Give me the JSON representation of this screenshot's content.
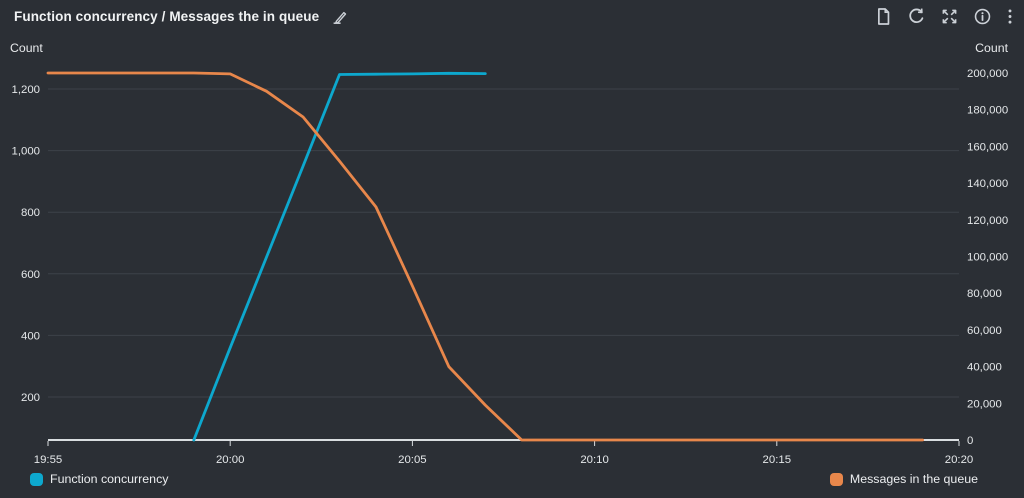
{
  "chart_data": {
    "type": "line",
    "title": "Function concurrency / Messages the in queue",
    "grid": "horizontal",
    "legend_position": "bottom",
    "x_axis": {
      "ticks": [
        "19:55",
        "20:00",
        "20:05",
        "20:10",
        "20:15",
        "20:20"
      ]
    },
    "left_axis": {
      "label": "Count",
      "ticks": [
        1200,
        1000,
        800,
        600,
        400,
        200
      ],
      "tick_labels": [
        "1,200",
        "1,000",
        "800",
        "600",
        "400",
        "200"
      ],
      "approx_range": [
        60,
        1310
      ]
    },
    "right_axis": {
      "label": "Count",
      "ticks": [
        200000,
        180000,
        160000,
        140000,
        120000,
        100000,
        80000,
        60000,
        40000,
        20000,
        0
      ],
      "tick_labels": [
        "200,000",
        "180,000",
        "160,000",
        "140,000",
        "120,000",
        "100,000",
        "80,000",
        "60,000",
        "40,000",
        "20,000",
        "0"
      ],
      "approx_range": [
        0,
        200000
      ]
    },
    "series": [
      {
        "name": "Function concurrency",
        "axis": "left",
        "color": "#0da8ce",
        "points": [
          [
            "19:59",
            60
          ],
          [
            "20:00",
            360
          ],
          [
            "20:01",
            655
          ],
          [
            "20:02",
            950
          ],
          [
            "20:03",
            1247
          ],
          [
            "20:04",
            1248
          ],
          [
            "20:05",
            1249
          ],
          [
            "20:06",
            1251
          ],
          [
            "20:07",
            1250
          ]
        ]
      },
      {
        "name": "Messages in the queue",
        "axis": "right",
        "color": "#e8874b",
        "points": [
          [
            "19:55",
            200000
          ],
          [
            "19:56",
            200000
          ],
          [
            "19:57",
            200000
          ],
          [
            "19:58",
            200000
          ],
          [
            "19:59",
            200000
          ],
          [
            "20:00",
            199500
          ],
          [
            "20:01",
            190000
          ],
          [
            "20:02",
            176000
          ],
          [
            "20:03",
            152000
          ],
          [
            "20:04",
            127000
          ],
          [
            "20:05",
            84000
          ],
          [
            "20:06",
            40000
          ],
          [
            "20:07",
            19000
          ],
          [
            "20:08",
            0
          ],
          [
            "20:09",
            0
          ],
          [
            "20:10",
            0
          ],
          [
            "20:11",
            0
          ],
          [
            "20:12",
            0
          ],
          [
            "20:13",
            0
          ],
          [
            "20:14",
            0
          ],
          [
            "20:15",
            0
          ],
          [
            "20:16",
            0
          ],
          [
            "20:17",
            0
          ],
          [
            "20:18",
            0
          ],
          [
            "20:19",
            0
          ]
        ]
      }
    ]
  },
  "toolbar": {
    "edit_icon": "pencil-edit-icon",
    "action_icons": [
      "copy-source-icon",
      "refresh-icon",
      "enlarge-icon",
      "info-icon",
      "more-menu-icon"
    ]
  },
  "theme": {
    "background": "#2b2f35",
    "gridline": "#3d4249",
    "axis_line": "#d9dde0",
    "text": "#eceef0"
  }
}
